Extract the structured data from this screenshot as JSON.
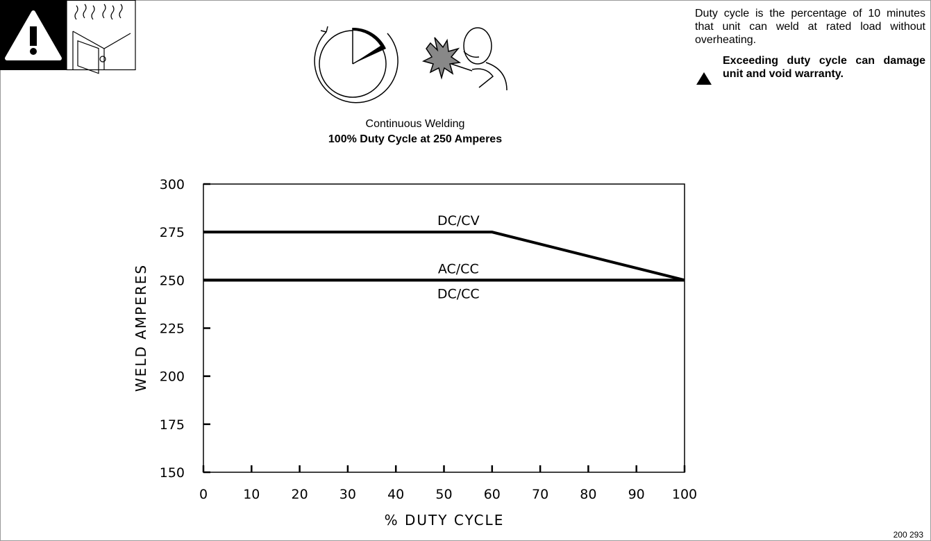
{
  "caption": {
    "title": "Continuous Welding",
    "subtitle": "100% Duty Cycle at 250 Amperes"
  },
  "note": {
    "text": "Duty cycle is the percentage of 10 minutes that unit can weld at rated load without overheating.",
    "warning": "Exceeding duty cycle can damage unit and void warranty."
  },
  "figure_number": "200 293",
  "chart_data": {
    "type": "line",
    "x_label": "% DUTY CYCLE",
    "y_label": "WELD AMPERES",
    "xlim": [
      0,
      100
    ],
    "xticks": [
      0,
      10,
      20,
      30,
      40,
      50,
      60,
      70,
      80,
      90,
      100
    ],
    "ylim": [
      150,
      300
    ],
    "yticks": [
      150,
      175,
      200,
      225,
      250,
      275,
      300
    ],
    "series": [
      {
        "name": "DC/CV",
        "color": "#000000",
        "x": [
          0,
          60,
          100
        ],
        "values": [
          275,
          275,
          250
        ]
      },
      {
        "name": "AC/CC",
        "color": "#000000",
        "x": [
          0,
          100
        ],
        "values": [
          250,
          250
        ]
      },
      {
        "name": "DC/CC",
        "color": "#000000",
        "x": [
          0,
          100
        ],
        "values": [
          250,
          250
        ]
      }
    ]
  }
}
